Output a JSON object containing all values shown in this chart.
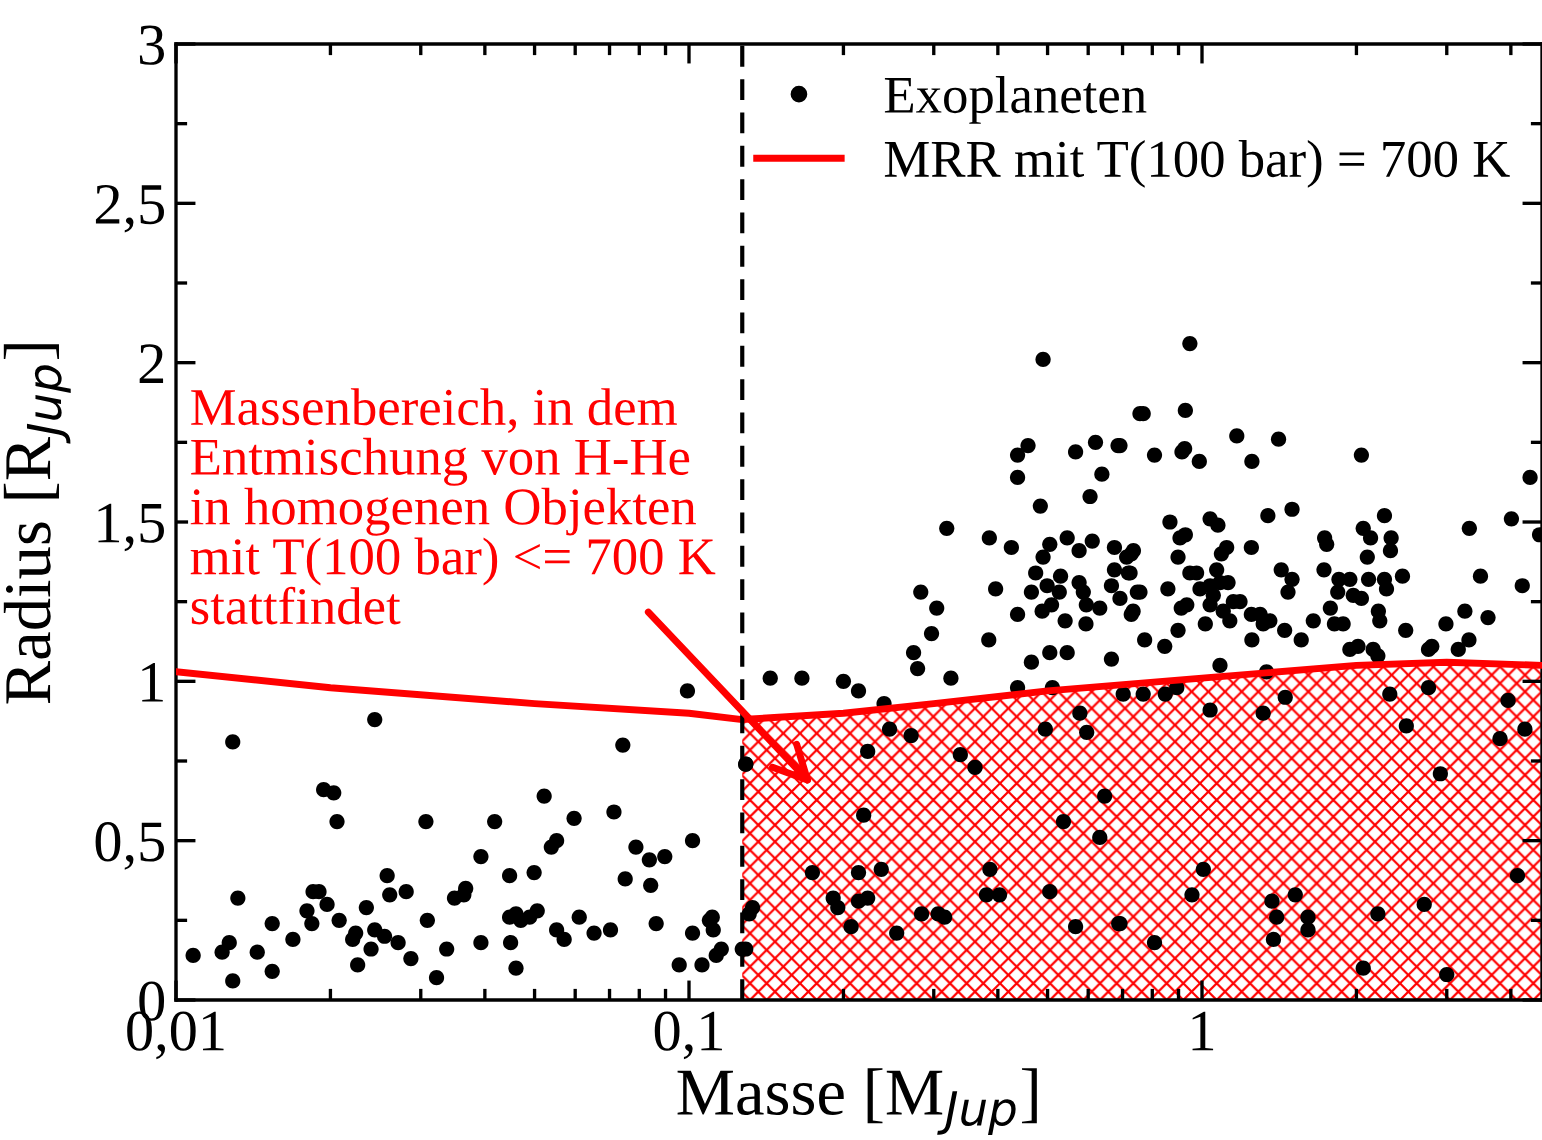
{
  "chart_data": {
    "type": "scatter",
    "xlabel": "Masse [M$_{Jup}$]",
    "ylabel": "Radius [R$_{Jup}$]",
    "log": "x",
    "xlim": [
      0.01,
      4.6
    ],
    "ylim": [
      0,
      3
    ],
    "xticks": [
      {
        "value": 0.01,
        "label": "0,01"
      },
      {
        "value": 0.02,
        "label": null
      },
      {
        "value": 0.03,
        "label": null
      },
      {
        "value": 0.04,
        "label": null
      },
      {
        "value": 0.05,
        "label": null
      },
      {
        "value": 0.06,
        "label": null
      },
      {
        "value": 0.07,
        "label": null
      },
      {
        "value": 0.08,
        "label": null
      },
      {
        "value": 0.09,
        "label": null
      },
      {
        "value": 0.1,
        "label": "0,1"
      },
      {
        "value": 0.2,
        "label": null
      },
      {
        "value": 0.3,
        "label": null
      },
      {
        "value": 0.4,
        "label": null
      },
      {
        "value": 0.5,
        "label": null
      },
      {
        "value": 0.6,
        "label": null
      },
      {
        "value": 0.7,
        "label": null
      },
      {
        "value": 0.8,
        "label": null
      },
      {
        "value": 0.9,
        "label": null
      },
      {
        "value": 1,
        "label": "1"
      },
      {
        "value": 2,
        "label": null
      },
      {
        "value": 3,
        "label": null
      },
      {
        "value": 4,
        "label": null
      }
    ],
    "yticks": [
      0,
      {
        "value": 0.25,
        "label": null
      },
      {
        "value": 0.5,
        "label": "0,5"
      },
      {
        "value": 0.75,
        "label": null
      },
      1,
      {
        "value": 1.25,
        "label": null
      },
      {
        "value": 1.5,
        "label": "1,5"
      },
      {
        "value": 1.75,
        "label": null
      },
      2,
      {
        "value": 2.25,
        "label": null
      },
      {
        "value": 2.5,
        "label": "2,5"
      },
      {
        "value": 2.75,
        "label": null
      },
      3
    ],
    "grid": false,
    "legend": "top right",
    "marker": "circle",
    "series": [
      {
        "name": "Exoplaneten",
        "color": "#000000",
        "x": [
          0.0108,
          0.0123,
          0.0127,
          0.0129,
          0.0129,
          0.0132,
          0.0144,
          0.0154,
          0.0154,
          0.0169,
          0.018,
          0.0184,
          0.0185,
          0.019,
          0.0194,
          0.0203,
          0.0206,
          0.0197,
          0.0208,
          0.0221,
          0.0224,
          0.0226,
          0.0235,
          0.024,
          0.0244,
          0.0244,
          0.0255,
          0.0258,
          0.0261,
          0.0271,
          0.0281,
          0.0287,
          0.0307,
          0.0309,
          0.0322,
          0.0337,
          0.0349,
          0.0364,
          0.0367,
          0.0393,
          0.0393,
          0.0418,
          0.0447,
          0.0449,
          0.0447,
          0.046,
          0.046,
          0.047,
          0.0489,
          0.0499,
          0.0506,
          0.0522,
          0.0539,
          0.0552,
          0.0552,
          0.0571,
          0.0597,
          0.0611,
          0.0653,
          0.0703,
          0.0714,
          0.0743,
          0.0751,
          0.0788,
          0.0837,
          0.0842,
          0.0863,
          0.0897,
          0.0957,
          0.0993,
          0.1016,
          0.1016,
          0.106,
          0.1096,
          0.111,
          0.1115,
          0.113,
          0.1156,
          0.127,
          0.129,
          0.131,
          0.144,
          0.166,
          0.2,
          0.214,
          0.24,
          0.274,
          0.279,
          0.283,
          0.297,
          0.304,
          0.318,
          0.324,
          0.384,
          0.385,
          0.396,
          0.425,
          0.437,
          0.437,
          0.437,
          0.437,
          0.458,
          0.465,
          0.465,
          0.474,
          0.484,
          0.488,
          0.49,
          0.49,
          0.499,
          0.505,
          0.505,
          0.509,
          0.511,
          0.527,
          0.53,
          0.541,
          0.546,
          0.546,
          0.567,
          0.576,
          0.576,
          0.587,
          0.594,
          0.595,
          0.605,
          0.611,
          0.62,
          0.632,
          0.638,
          0.666,
          0.666,
          0.675,
          0.675,
          0.686,
          0.692,
          0.719,
          0.728,
          0.734,
          0.748,
          0.757,
          0.692,
          0.768,
          0.808,
          0.928,
          0.947,
          0.914,
          0.925,
          0.988,
          1.169,
          1.251,
          1.41,
          2.045,
          4.36,
          0.866,
          1.037,
          1.074,
          1.344,
          1.498,
          2.268,
          4.01,
          3.32,
          0.906,
          0.928,
          0.735,
          0.713,
          0.898,
          1.248,
          1.734,
          1.75,
          2.062,
          2.131,
          2.337,
          2.33,
          2.1,
          0.724,
          0.757,
          0.858,
          0.947,
          0.976,
          1.068,
          1.117,
          1.091,
          0.991,
          1.037,
          1.052,
          1.084,
          1.124,
          1.427,
          1.471,
          1.498,
          1.729,
          1.849,
          1.942,
          1.839,
          1.972,
          2.045,
          2.112,
          2.268,
          2.289,
          2.459,
          3.49,
          4.21,
          0.728,
          0.911,
          0.934,
          1.037,
          1.1,
          1.151,
          1.186,
          1.133,
          1.015,
          1.248,
          1.298,
          1.316,
          1.356,
          0.898,
          1.251,
          1.449,
          1.561,
          1.648,
          1.779,
          1.812,
          1.884,
          2.207,
          2.221,
          2.495,
          2.989,
          3.254,
          3.61,
          0.773,
          0.846,
          1.942,
          2.014,
          2.156,
          2.202,
          2.764,
          2.805,
          3.159,
          3.314,
          1.084,
          1.336,
          4.55,
          0.129,
          0.246,
          0.271,
          0.223,
          0.338,
          0.361,
          0.219,
          0.174,
          0.214,
          0.237,
          0.191,
          0.195,
          0.214,
          0.223,
          0.207,
          0.254,
          0.284,
          0.306,
          0.315,
          0.386,
          0.38,
          0.403,
          0.505,
          0.567,
          0.688,
          0.646,
          0.537,
          0.632,
          0.495,
          0.596,
          0.578,
          0.133,
          0.129,
          1.037,
          1.316,
          1.453,
          2.323,
          2.502,
          2.764,
          2.915,
          3.81,
          3.95,
          4.26,
          1.006,
          0.956,
          1.369,
          1.52,
          1.398,
          1.609,
          1.609,
          1.378,
          0.808,
          2.202,
          2.711,
          2.062,
          3.0,
          4.12,
          0.692,
          0.702,
          0.768,
          0.848,
          0.893
        ],
        "values": [
          0.14,
          0.15,
          0.18,
          0.06,
          0.81,
          0.32,
          0.15,
          0.24,
          0.09,
          0.19,
          0.28,
          0.24,
          0.34,
          0.34,
          0.66,
          0.65,
          0.56,
          0.3,
          0.25,
          0.19,
          0.21,
          0.11,
          0.29,
          0.16,
          0.88,
          0.22,
          0.2,
          0.39,
          0.33,
          0.18,
          0.34,
          0.13,
          0.56,
          0.25,
          0.07,
          0.16,
          0.32,
          0.33,
          0.35,
          0.18,
          0.45,
          0.56,
          0.39,
          0.18,
          0.26,
          0.1,
          0.27,
          0.25,
          0.26,
          0.4,
          0.28,
          0.64,
          0.48,
          0.5,
          0.22,
          0.19,
          0.57,
          0.26,
          0.21,
          0.22,
          0.59,
          0.8,
          0.38,
          0.48,
          0.44,
          0.36,
          0.24,
          0.45,
          0.11,
          0.97,
          0.5,
          0.21,
          0.11,
          0.25,
          0.26,
          0.22,
          0.14,
          0.16,
          0.16,
          0.74,
          0.27,
          1.01,
          1.01,
          1.0,
          0.97,
          0.93,
          1.09,
          1.04,
          1.28,
          1.15,
          1.23,
          1.48,
          1.01,
          1.13,
          1.45,
          1.29,
          1.42,
          1.21,
          1.64,
          1.71,
          0.98,
          1.74,
          1.06,
          1.28,
          1.34,
          1.55,
          1.22,
          1.39,
          2.01,
          1.3,
          1.43,
          1.09,
          1.24,
          0.98,
          1.28,
          1.33,
          1.19,
          1.45,
          1.09,
          1.72,
          1.31,
          1.41,
          1.28,
          1.18,
          1.24,
          1.58,
          1.44,
          1.75,
          1.23,
          1.65,
          1.3,
          1.07,
          1.42,
          1.35,
          1.74,
          1.26,
          1.34,
          1.4,
          1.22,
          1.28,
          1.84,
          1.74,
          1.84,
          1.71,
          1.85,
          2.06,
          1.72,
          1.73,
          1.69,
          1.77,
          1.69,
          1.76,
          1.71,
          1.64,
          1.5,
          1.51,
          1.49,
          1.52,
          1.54,
          1.52,
          1.51,
          1.48,
          1.45,
          1.46,
          1.41,
          1.39,
          1.39,
          1.42,
          1.45,
          1.43,
          1.48,
          1.45,
          1.45,
          1.41,
          1.39,
          1.34,
          1.28,
          1.29,
          1.34,
          1.34,
          1.35,
          1.42,
          1.4,
          1.29,
          1.3,
          1.27,
          1.31,
          1.31,
          1.35,
          1.28,
          1.32,
          1.35,
          1.32,
          1.32,
          1.28,
          1.27,
          1.26,
          1.32,
          1.32,
          1.29,
          1.33,
          1.33,
          1.3,
          1.21,
          1.23,
          1.24,
          1.24,
          1.22,
          1.25,
          1.25,
          1.19,
          1.18,
          1.21,
          1.21,
          1.18,
          1.19,
          1.16,
          1.13,
          1.16,
          1.13,
          1.19,
          1.23,
          1.18,
          1.18,
          1.22,
          1.19,
          1.16,
          1.18,
          1.22,
          1.2,
          1.13,
          1.11,
          1.1,
          1.11,
          1.1,
          1.08,
          1.1,
          1.11,
          1.1,
          1.13,
          1.05,
          1.03,
          1.46,
          0.74,
          0.85,
          0.83,
          0.78,
          0.77,
          0.73,
          0.58,
          0.4,
          0.4,
          0.41,
          0.32,
          0.29,
          0.31,
          0.32,
          0.23,
          0.21,
          0.27,
          0.27,
          0.26,
          0.41,
          0.33,
          0.33,
          0.34,
          0.23,
          0.24,
          0.64,
          0.56,
          0.51,
          0.85,
          0.84,
          0.9,
          0.29,
          0.16,
          0.91,
          0.9,
          0.95,
          0.96,
          0.86,
          0.98,
          0.71,
          0.82,
          0.94,
          0.85,
          0.41,
          0.33,
          0.31,
          0.33,
          0.26,
          0.26,
          0.22,
          0.19,
          0.18,
          0.27,
          0.3,
          0.1,
          0.08,
          0.39,
          0.24,
          0.96,
          0.96,
          0.96,
          0.98
        ]
      },
      {
        "name": "MRR mit T(100 bar) = 700 K",
        "type": "line",
        "color": "#ff0000",
        "line_style": "solid",
        "marker": "none",
        "x": [
          0.01,
          0.02,
          0.05,
          0.1,
          0.127,
          0.2,
          0.3,
          0.5,
          1,
          2,
          3,
          4.6
        ],
        "values": [
          1.03,
          0.98,
          0.93,
          0.9,
          0.88,
          0.9,
          0.93,
          0.97,
          1.01,
          1.05,
          1.06,
          1.05
        ]
      }
    ],
    "ref_lines": [
      {
        "axis": "x",
        "value": 0.127,
        "color": "#000000",
        "line_style": "dashed"
      }
    ],
    "bands": [
      {
        "axis": "x",
        "from": 0.127,
        "to": 4.6,
        "color": "#ff0000"
      }
    ],
    "annotations": [
      "Massenbereich, in dem\nEntmischung von H-He\nin homogenen Objekten\nmit T(100 bar) <= 700 K\nstattfindet"
    ]
  }
}
